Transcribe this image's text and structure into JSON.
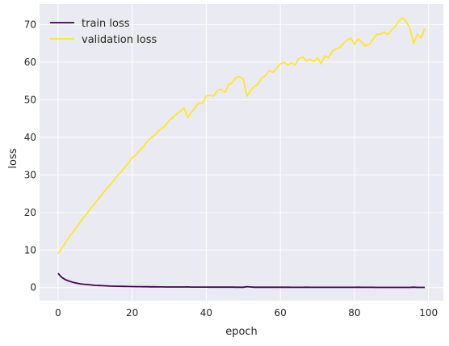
{
  "chart_data": {
    "type": "line",
    "title": "",
    "xlabel": "epoch",
    "ylabel": "loss",
    "xlim": [
      -5,
      104
    ],
    "ylim": [
      -3.5,
      75.5
    ],
    "xticks": [
      0,
      20,
      40,
      60,
      80,
      100
    ],
    "yticks": [
      0,
      10,
      20,
      30,
      40,
      50,
      60,
      70
    ],
    "grid": true,
    "legend_position": "top-left",
    "background": "#eaeaf2",
    "series": [
      {
        "name": "train loss",
        "color": "#440154",
        "x": [
          0,
          1,
          2,
          3,
          4,
          5,
          6,
          7,
          8,
          9,
          10,
          11,
          12,
          13,
          14,
          15,
          16,
          17,
          18,
          19,
          20,
          21,
          22,
          23,
          24,
          25,
          26,
          27,
          28,
          29,
          30,
          31,
          32,
          33,
          34,
          35,
          36,
          37,
          38,
          39,
          40,
          41,
          42,
          43,
          44,
          45,
          46,
          47,
          48,
          49,
          50,
          51,
          52,
          53,
          54,
          55,
          56,
          57,
          58,
          59,
          60,
          61,
          62,
          63,
          64,
          65,
          66,
          67,
          68,
          69,
          70,
          71,
          72,
          73,
          74,
          75,
          76,
          77,
          78,
          79,
          80,
          81,
          82,
          83,
          84,
          85,
          86,
          87,
          88,
          89,
          90,
          91,
          92,
          93,
          94,
          95,
          96,
          97,
          98,
          99
        ],
        "y": [
          3.8,
          2.7,
          2.1,
          1.7,
          1.4,
          1.2,
          1.0,
          0.9,
          0.8,
          0.7,
          0.6,
          0.55,
          0.5,
          0.45,
          0.4,
          0.38,
          0.35,
          0.33,
          0.3,
          0.28,
          0.27,
          0.25,
          0.24,
          0.23,
          0.22,
          0.21,
          0.2,
          0.19,
          0.18,
          0.17,
          0.17,
          0.16,
          0.16,
          0.15,
          0.15,
          0.18,
          0.14,
          0.14,
          0.13,
          0.13,
          0.13,
          0.12,
          0.12,
          0.12,
          0.11,
          0.11,
          0.11,
          0.11,
          0.1,
          0.1,
          0.1,
          0.25,
          0.15,
          0.1,
          0.1,
          0.1,
          0.09,
          0.09,
          0.09,
          0.09,
          0.09,
          0.09,
          0.09,
          0.08,
          0.08,
          0.08,
          0.08,
          0.1,
          0.08,
          0.08,
          0.08,
          0.08,
          0.08,
          0.07,
          0.07,
          0.07,
          0.07,
          0.07,
          0.07,
          0.07,
          0.07,
          0.1,
          0.07,
          0.07,
          0.07,
          0.07,
          0.06,
          0.06,
          0.06,
          0.06,
          0.06,
          0.06,
          0.06,
          0.06,
          0.06,
          0.06,
          0.12,
          0.06,
          0.06,
          0.06
        ]
      },
      {
        "name": "validation loss",
        "color": "#fde725",
        "x": [
          0,
          1,
          2,
          3,
          4,
          5,
          6,
          7,
          8,
          9,
          10,
          11,
          12,
          13,
          14,
          15,
          16,
          17,
          18,
          19,
          20,
          21,
          22,
          23,
          24,
          25,
          26,
          27,
          28,
          29,
          30,
          31,
          32,
          33,
          34,
          35,
          36,
          37,
          38,
          39,
          40,
          41,
          42,
          43,
          44,
          45,
          46,
          47,
          48,
          49,
          50,
          51,
          52,
          53,
          54,
          55,
          56,
          57,
          58,
          59,
          60,
          61,
          62,
          63,
          64,
          65,
          66,
          67,
          68,
          69,
          70,
          71,
          72,
          73,
          74,
          75,
          76,
          77,
          78,
          79,
          80,
          81,
          82,
          83,
          84,
          85,
          86,
          87,
          88,
          89,
          90,
          91,
          92,
          93,
          94,
          95,
          96,
          97,
          98,
          99
        ],
        "y": [
          9.0,
          10.5,
          12.0,
          13.5,
          14.8,
          16.0,
          17.5,
          18.8,
          20.0,
          21.3,
          22.5,
          23.8,
          25.0,
          26.2,
          27.3,
          28.5,
          29.8,
          30.8,
          32.0,
          33.2,
          34.6,
          35.3,
          36.5,
          37.5,
          38.8,
          39.8,
          40.5,
          41.6,
          42.3,
          43.2,
          44.5,
          45.3,
          46.2,
          47.0,
          47.8,
          45.3,
          46.7,
          48.0,
          49.2,
          49.0,
          51.0,
          51.2,
          51.0,
          52.5,
          52.8,
          52.0,
          54.0,
          54.5,
          56.0,
          56.1,
          55.5,
          51.0,
          52.5,
          53.5,
          54.3,
          55.8,
          56.5,
          57.8,
          57.3,
          58.5,
          59.5,
          60.0,
          59.2,
          59.9,
          59.3,
          61.0,
          61.4,
          60.4,
          60.8,
          60.2,
          61.2,
          59.6,
          61.7,
          61.2,
          62.9,
          63.5,
          63.9,
          65.0,
          65.9,
          66.5,
          64.8,
          66.2,
          65.3,
          64.3,
          64.8,
          66.0,
          67.5,
          67.5,
          68.0,
          67.4,
          68.5,
          69.5,
          71.0,
          71.8,
          70.8,
          69.0,
          65.0,
          67.5,
          66.5,
          69.0
        ]
      }
    ]
  }
}
